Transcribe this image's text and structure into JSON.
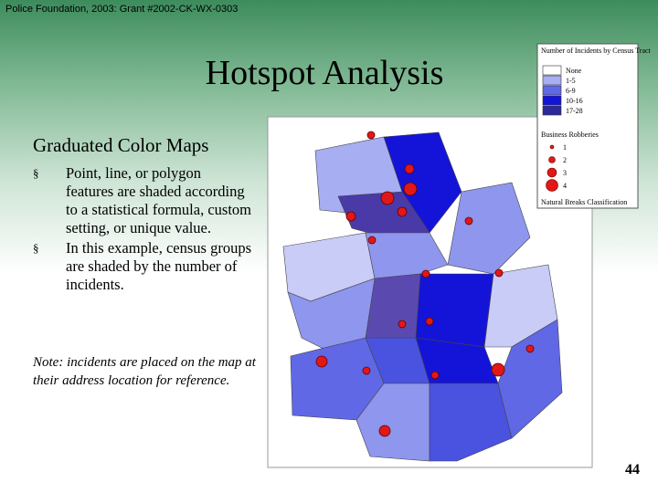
{
  "header": {
    "credit": "Police Foundation, 2003: Grant #2002-CK-WX-0303",
    "title": "Hotspot Analysis",
    "page_number": "44"
  },
  "body": {
    "heading": "Graduated Color Maps",
    "bullets": [
      "Point, line, or polygon features are shaded according to a statistical formula, custom setting, or unique value.",
      "In this example, census groups are shaded by the number of incidents."
    ],
    "note": "Note: incidents are placed on the map at their address location for reference."
  },
  "legend": {
    "title": "Number of Incidents by Census Tract",
    "classes": [
      "None",
      "1-5",
      "6-9",
      "10-16",
      "17-28"
    ],
    "points_title": "Business Robberies",
    "points": [
      "1",
      "2",
      "3",
      "4"
    ],
    "footer": "Natural Breaks Classification"
  }
}
